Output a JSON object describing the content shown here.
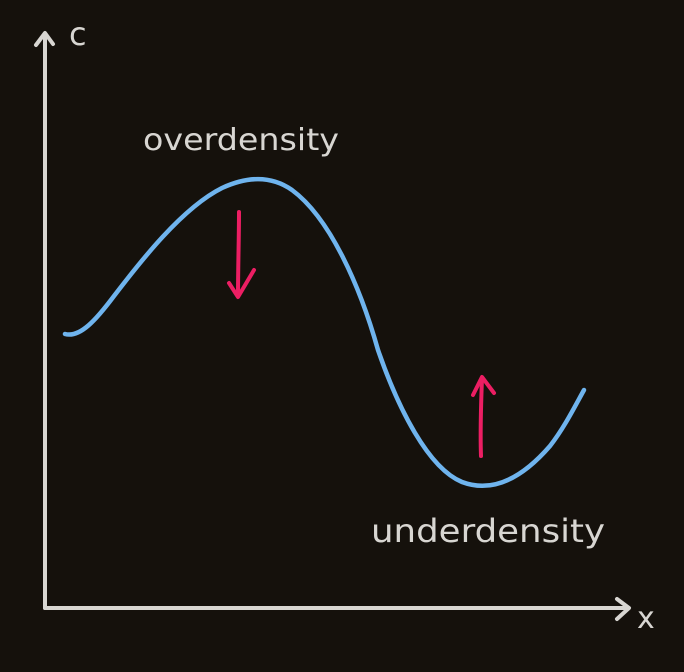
{
  "axes": {
    "y_label": "c",
    "x_label": "x"
  },
  "labels": {
    "peak": "overdensity",
    "trough": "underdensity"
  },
  "colors": {
    "background": "#15110c",
    "axes": "#d8d6d2",
    "curve": "#6fb4ee",
    "arrows": "#ec1e63",
    "text": "#d8d6d2"
  },
  "arrows": {
    "peak_direction": "down",
    "trough_direction": "up"
  }
}
